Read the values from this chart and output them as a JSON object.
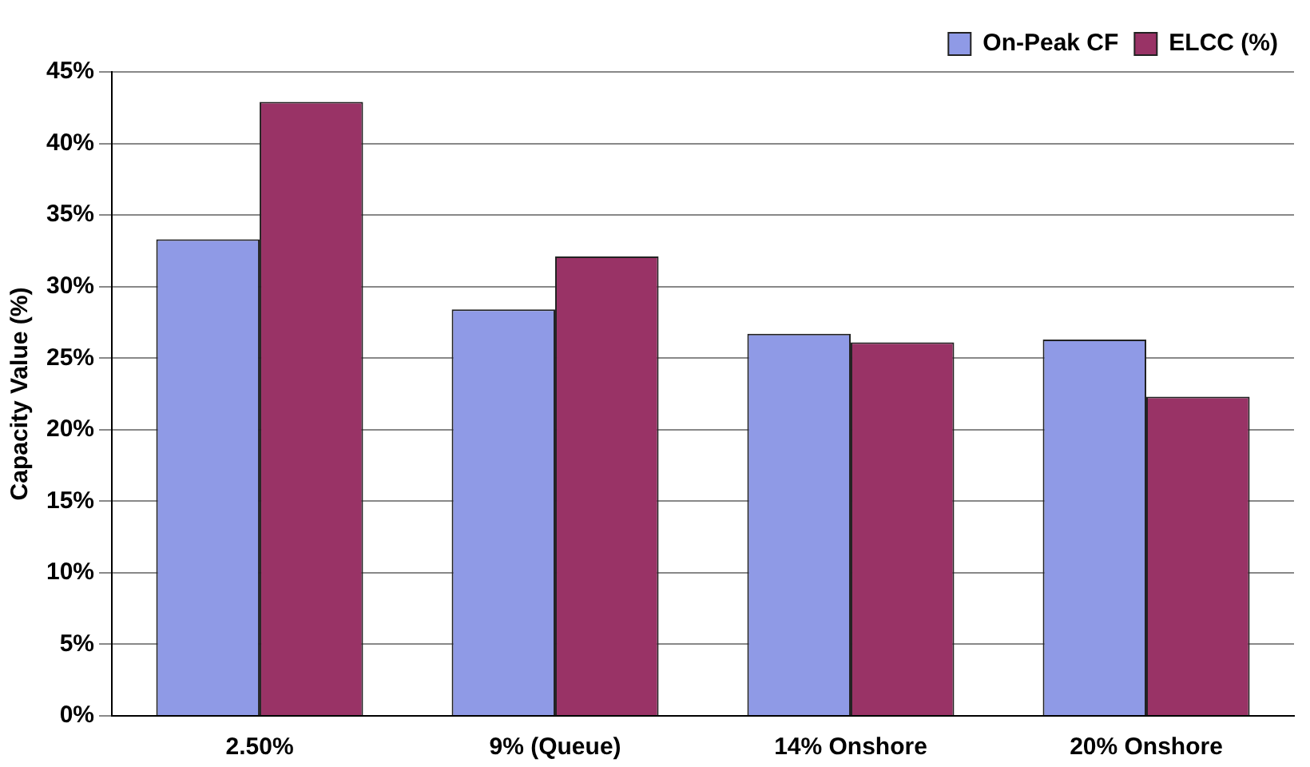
{
  "chart_data": {
    "type": "bar",
    "ylabel": "Capacity Value (%)",
    "categories": [
      "2.50%",
      "9% (Queue)",
      "14% Onshore",
      "20% Onshore"
    ],
    "series": [
      {
        "name": "On-Peak CF",
        "color": "#8f9ae6",
        "values": [
          33.3,
          28.4,
          26.7,
          26.3
        ]
      },
      {
        "name": "ELCC (%)",
        "color": "#993366",
        "values": [
          42.9,
          32.1,
          26.1,
          22.3
        ]
      }
    ],
    "ylim": [
      0,
      45
    ],
    "yticks": [
      {
        "value": 0,
        "label": "0%"
      },
      {
        "value": 5,
        "label": "5%"
      },
      {
        "value": 10,
        "label": "10%"
      },
      {
        "value": 15,
        "label": "15%"
      },
      {
        "value": 20,
        "label": "20%"
      },
      {
        "value": 25,
        "label": "25%"
      },
      {
        "value": 30,
        "label": "30%"
      },
      {
        "value": 35,
        "label": "35%"
      },
      {
        "value": 40,
        "label": "40%"
      },
      {
        "value": 45,
        "label": "45%"
      }
    ],
    "grid": "y",
    "legend": "top right"
  }
}
